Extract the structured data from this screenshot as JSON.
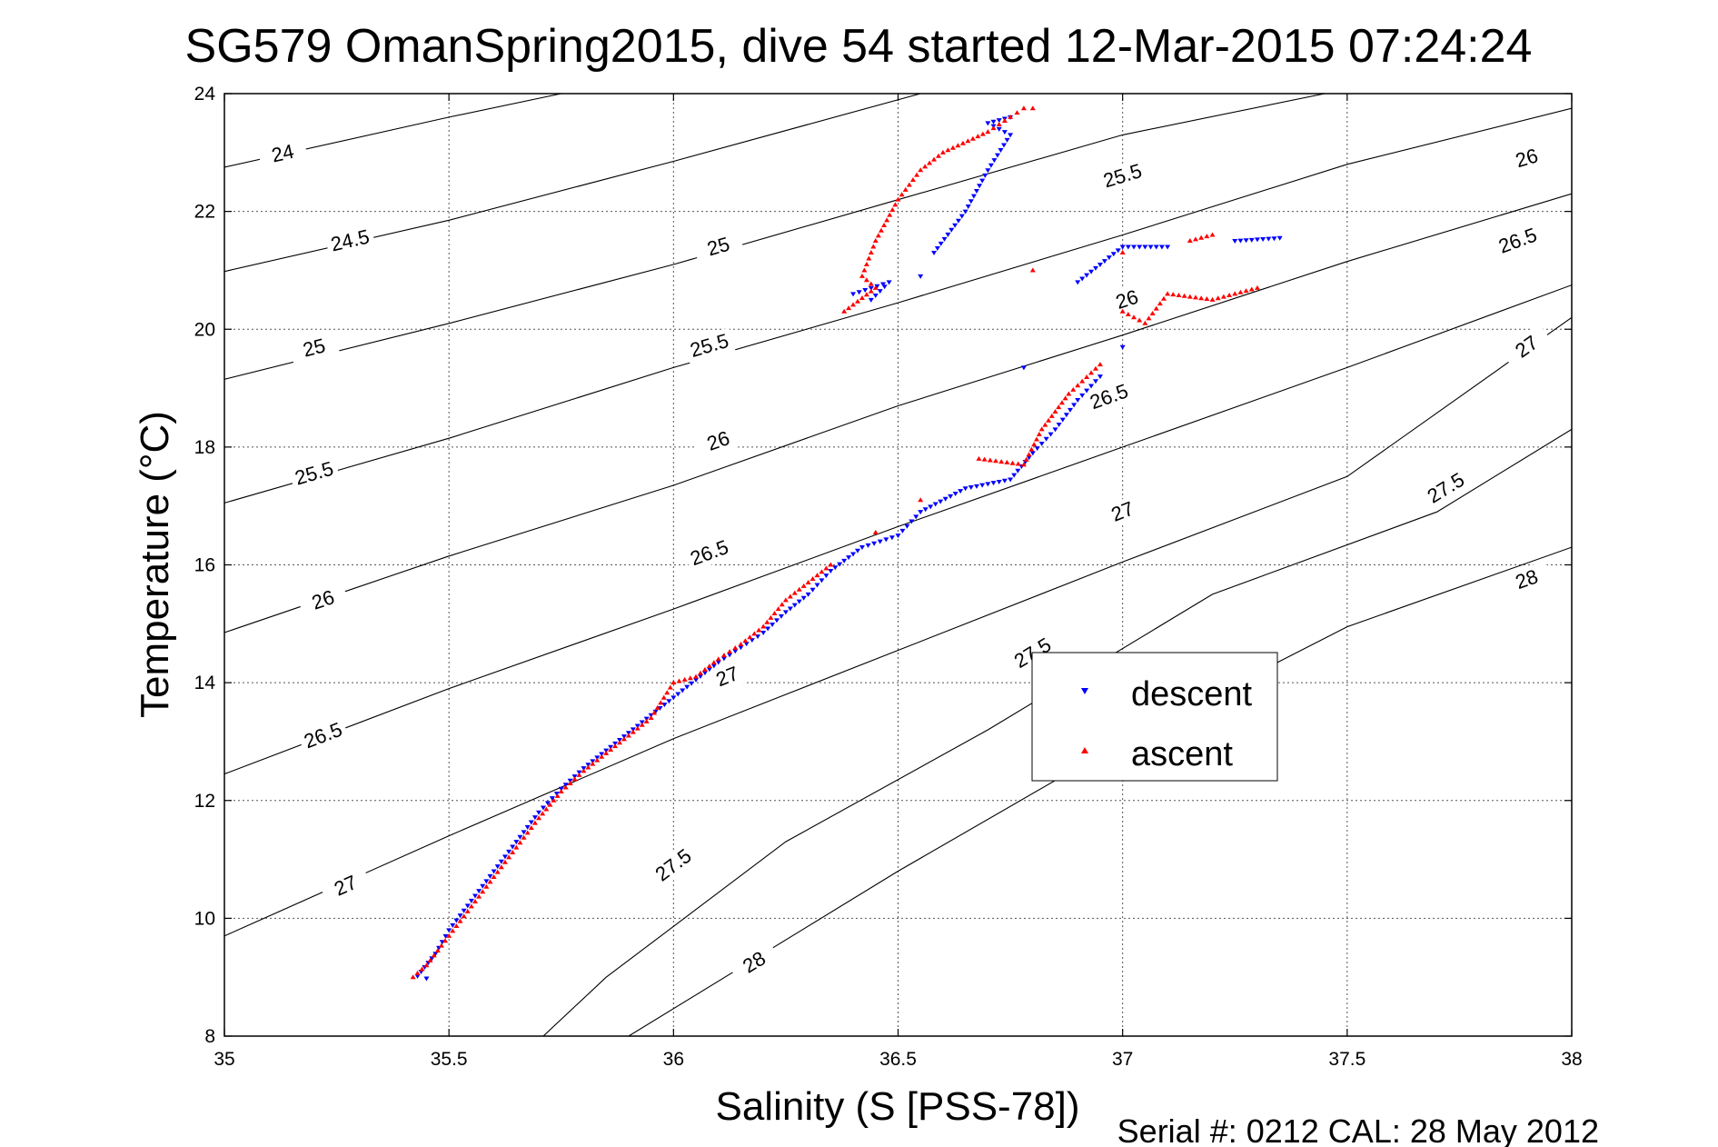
{
  "chart_data": {
    "type": "scatter",
    "title": "SG579 OmanSpring2015, dive 54 started 12-Mar-2015 07:24:24",
    "xlabel": "Salinity (S [PSS-78])",
    "ylabel": "Temperature (°C)",
    "xlim": [
      35,
      38
    ],
    "ylim": [
      8,
      24
    ],
    "xticks": [
      "35",
      "35.5",
      "36",
      "36.5",
      "37",
      "37.5",
      "38"
    ],
    "yticks": [
      "8",
      "10",
      "12",
      "14",
      "16",
      "18",
      "20",
      "22",
      "24"
    ],
    "grid": true,
    "legend_position": "center-right",
    "legend": [
      {
        "label": "descent",
        "color": "#0000ff",
        "marker": "triangle-down"
      },
      {
        "label": "ascent",
        "color": "#ff0000",
        "marker": "triangle-up"
      }
    ],
    "density_contours": [
      {
        "level": "24",
        "points": [
          [
            35,
            22.75
          ],
          [
            35.5,
            23.6
          ],
          [
            35.75,
            24
          ]
        ],
        "labels": [
          [
            35.13,
            22.98
          ]
        ]
      },
      {
        "level": "24.5",
        "points": [
          [
            35,
            20.98
          ],
          [
            35.5,
            21.85
          ],
          [
            36,
            22.85
          ],
          [
            36.55,
            24
          ]
        ],
        "labels": [
          [
            35.28,
            21.5
          ]
        ]
      },
      {
        "level": "25",
        "points": [
          [
            35,
            19.15
          ],
          [
            35.5,
            20.1
          ],
          [
            36,
            21.1
          ],
          [
            36.5,
            22.2
          ],
          [
            37,
            23.3
          ],
          [
            37.45,
            24
          ]
        ],
        "labels": [
          [
            35.2,
            19.68
          ],
          [
            36.1,
            21.4
          ]
        ]
      },
      {
        "level": "25.5",
        "points": [
          [
            35,
            17.05
          ],
          [
            35.5,
            18.15
          ],
          [
            36,
            19.35
          ],
          [
            36.5,
            20.45
          ],
          [
            37,
            21.6
          ],
          [
            37.5,
            22.8
          ],
          [
            38,
            23.75
          ]
        ],
        "labels": [
          [
            35.2,
            17.55
          ],
          [
            36.08,
            19.72
          ],
          [
            37.0,
            22.6
          ]
        ]
      },
      {
        "level": "26",
        "points": [
          [
            35,
            14.85
          ],
          [
            35.5,
            16.15
          ],
          [
            36,
            17.35
          ],
          [
            36.5,
            18.7
          ],
          [
            37,
            19.9
          ],
          [
            37.5,
            21.15
          ],
          [
            38,
            22.3
          ]
        ],
        "labels": [
          [
            35.22,
            15.4
          ],
          [
            36.1,
            18.1
          ],
          [
            37.01,
            20.5
          ],
          [
            37.9,
            22.9
          ]
        ]
      },
      {
        "level": "26.5",
        "points": [
          [
            35,
            12.45
          ],
          [
            35.5,
            13.9
          ],
          [
            36,
            15.25
          ],
          [
            36.5,
            16.65
          ],
          [
            37,
            18.0
          ],
          [
            37.5,
            19.35
          ],
          [
            38,
            20.75
          ]
        ],
        "labels": [
          [
            35.22,
            13.1
          ],
          [
            36.08,
            16.2
          ],
          [
            36.97,
            18.85
          ],
          [
            37.88,
            21.5
          ]
        ]
      },
      {
        "level": "27",
        "points": [
          [
            35,
            9.7
          ],
          [
            35.5,
            11.4
          ],
          [
            36,
            13.05
          ],
          [
            36.5,
            14.55
          ],
          [
            37,
            16.05
          ],
          [
            37.5,
            17.5
          ],
          [
            38,
            20.2
          ]
        ],
        "labels": [
          [
            35.27,
            10.55
          ],
          [
            36.12,
            14.1
          ],
          [
            37.0,
            16.9
          ],
          [
            37.9,
            19.7
          ]
        ]
      },
      {
        "level": "27.5",
        "points": [
          [
            35.5,
            6.5
          ],
          [
            35.85,
            9.0
          ],
          [
            36.25,
            11.3
          ],
          [
            36.7,
            13.2
          ],
          [
            37.2,
            15.5
          ],
          [
            37.7,
            16.9
          ],
          [
            38,
            18.3
          ]
        ],
        "labels": [
          [
            36.0,
            10.9
          ],
          [
            36.8,
            14.5
          ],
          [
            37.72,
            17.3
          ]
        ]
      },
      {
        "level": "28",
        "points": [
          [
            35.9,
            8.0
          ],
          [
            36.5,
            10.8
          ],
          [
            37,
            13.0
          ],
          [
            37.5,
            14.95
          ],
          [
            38,
            16.3
          ]
        ],
        "labels": [
          [
            36.18,
            9.25
          ],
          [
            37.9,
            15.75
          ]
        ]
      }
    ],
    "series": [
      {
        "name": "descent",
        "marker": "triangle-down",
        "color": "#0000ff",
        "points": [
          [
            35.45,
            8.98
          ],
          [
            35.43,
            9.02
          ],
          [
            35.47,
            9.4
          ],
          [
            35.5,
            9.8
          ],
          [
            35.55,
            10.3
          ],
          [
            35.6,
            10.8
          ],
          [
            35.65,
            11.3
          ],
          [
            35.7,
            11.8
          ],
          [
            35.75,
            12.2
          ],
          [
            35.8,
            12.55
          ],
          [
            35.85,
            12.85
          ],
          [
            35.9,
            13.15
          ],
          [
            35.95,
            13.45
          ],
          [
            36.0,
            13.75
          ],
          [
            36.05,
            14.05
          ],
          [
            36.1,
            14.35
          ],
          [
            36.15,
            14.6
          ],
          [
            36.2,
            14.85
          ],
          [
            36.25,
            15.2
          ],
          [
            36.3,
            15.5
          ],
          [
            36.35,
            15.9
          ],
          [
            36.42,
            16.3
          ],
          [
            36.5,
            16.5
          ],
          [
            36.55,
            16.9
          ],
          [
            36.65,
            17.3
          ],
          [
            36.75,
            17.45
          ],
          [
            36.8,
            17.9
          ],
          [
            36.85,
            18.3
          ],
          [
            36.9,
            18.8
          ],
          [
            36.95,
            19.2
          ],
          [
            36.78,
            19.35
          ],
          [
            37.0,
            19.7
          ],
          [
            36.9,
            20.8
          ],
          [
            36.95,
            21.1
          ],
          [
            37.0,
            21.4
          ],
          [
            37.1,
            21.4
          ],
          [
            37.25,
            21.5
          ],
          [
            37.35,
            21.55
          ],
          [
            36.55,
            20.9
          ],
          [
            36.4,
            20.6
          ],
          [
            36.48,
            20.8
          ],
          [
            36.44,
            20.5
          ],
          [
            36.58,
            21.3
          ],
          [
            36.65,
            22.0
          ],
          [
            36.7,
            22.7
          ],
          [
            36.75,
            23.3
          ],
          [
            36.7,
            23.5
          ],
          [
            36.75,
            23.6
          ]
        ]
      },
      {
        "name": "ascent",
        "marker": "triangle-up",
        "color": "#ff0000",
        "points": [
          [
            35.42,
            9.0
          ],
          [
            35.45,
            9.2
          ],
          [
            35.5,
            9.7
          ],
          [
            35.55,
            10.2
          ],
          [
            35.6,
            10.7
          ],
          [
            35.65,
            11.2
          ],
          [
            35.7,
            11.7
          ],
          [
            35.75,
            12.15
          ],
          [
            35.8,
            12.5
          ],
          [
            35.85,
            12.8
          ],
          [
            35.9,
            13.1
          ],
          [
            35.95,
            13.4
          ],
          [
            36.0,
            14.0
          ],
          [
            36.05,
            14.1
          ],
          [
            36.1,
            14.4
          ],
          [
            36.15,
            14.65
          ],
          [
            36.2,
            14.95
          ],
          [
            36.25,
            15.4
          ],
          [
            36.3,
            15.7
          ],
          [
            36.35,
            16.0
          ],
          [
            36.45,
            16.55
          ],
          [
            36.55,
            17.1
          ],
          [
            36.68,
            17.8
          ],
          [
            36.78,
            17.7
          ],
          [
            36.82,
            18.3
          ],
          [
            36.88,
            18.9
          ],
          [
            36.95,
            19.4
          ],
          [
            37.0,
            20.3
          ],
          [
            37.05,
            20.1
          ],
          [
            37.1,
            20.6
          ],
          [
            37.2,
            20.5
          ],
          [
            37.3,
            20.7
          ],
          [
            37.0,
            21.3
          ],
          [
            36.8,
            21.0
          ],
          [
            37.15,
            21.5
          ],
          [
            37.2,
            21.6
          ],
          [
            36.38,
            20.3
          ],
          [
            36.45,
            20.7
          ],
          [
            36.42,
            20.9
          ],
          [
            36.45,
            21.5
          ],
          [
            36.5,
            22.2
          ],
          [
            36.55,
            22.7
          ],
          [
            36.6,
            23.0
          ],
          [
            36.7,
            23.35
          ],
          [
            36.75,
            23.6
          ],
          [
            36.78,
            23.75
          ],
          [
            36.8,
            23.75
          ]
        ]
      }
    ],
    "footer": "Serial #: 0212  CAL: 28 May 2012"
  }
}
